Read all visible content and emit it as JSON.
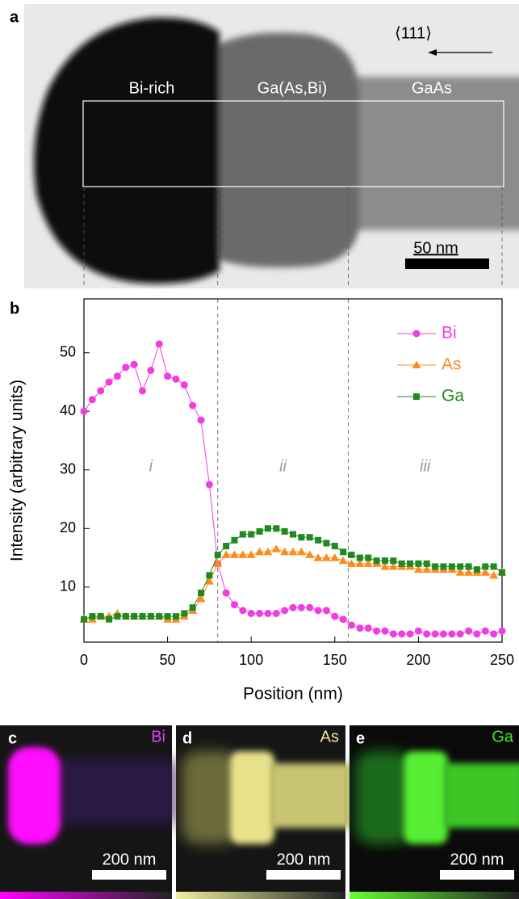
{
  "panels": {
    "a": {
      "letter": "a",
      "regions": [
        "Bi-rich",
        "Ga(As,Bi)",
        "GaAs"
      ],
      "direction": "⟨111⟩",
      "scale_bar": "50 nm"
    },
    "c": {
      "letter": "c",
      "element": "Bi",
      "scale_bar": "200 nm"
    },
    "d": {
      "letter": "d",
      "element": "As",
      "scale_bar": "200 nm"
    },
    "e": {
      "letter": "e",
      "element": "Ga",
      "scale_bar": "200 nm"
    }
  },
  "chart_data": {
    "type": "line",
    "letter": "b",
    "x_label": "Position (nm)",
    "y_label": "Intensity (arbitrary units)",
    "x": [
      0,
      5,
      10,
      15,
      20,
      25,
      30,
      35,
      40,
      45,
      50,
      55,
      60,
      65,
      70,
      75,
      80,
      85,
      90,
      95,
      100,
      105,
      110,
      115,
      120,
      125,
      130,
      135,
      140,
      145,
      150,
      155,
      160,
      165,
      170,
      175,
      180,
      185,
      190,
      195,
      200,
      205,
      210,
      215,
      220,
      225,
      230,
      235,
      240,
      245,
      250
    ],
    "series": [
      {
        "name": "Bi",
        "color": "#f23ce0",
        "marker": "circle",
        "values": [
          40,
          42,
          43.5,
          45,
          46,
          47.5,
          48,
          43.5,
          47,
          51.5,
          46,
          45.5,
          44.5,
          41,
          38.5,
          27.5,
          14,
          9,
          7,
          6,
          5.5,
          5.5,
          5.5,
          5.5,
          6,
          6.5,
          6.5,
          6.5,
          6,
          6,
          5,
          4.5,
          3.5,
          3,
          3,
          2.5,
          2.5,
          2,
          2,
          2,
          2.5,
          2,
          2,
          2,
          2,
          2,
          2.5,
          2,
          2.5,
          2,
          2.5
        ]
      },
      {
        "name": "As",
        "color": "#ff8c1a",
        "marker": "triangle",
        "values": [
          4.5,
          4.5,
          5,
          5,
          5.5,
          5,
          5,
          5,
          5,
          5,
          4.5,
          4.5,
          5,
          6,
          8,
          11,
          14,
          15.5,
          15.5,
          15.5,
          15.5,
          16,
          16,
          16.5,
          16,
          16,
          16,
          15.5,
          15,
          15,
          15,
          14.5,
          14,
          14,
          14,
          14,
          13.5,
          13.5,
          13.5,
          13.5,
          13,
          13,
          13,
          13,
          13,
          12.5,
          12.5,
          12.5,
          12.5,
          12,
          12.5
        ]
      },
      {
        "name": "Ga",
        "color": "#1f8a1f",
        "marker": "square",
        "values": [
          4.5,
          5,
          5,
          4.5,
          5,
          5,
          5,
          5,
          5,
          5,
          5,
          5,
          5.5,
          6.5,
          9,
          12,
          15.5,
          17,
          18,
          19,
          19,
          19.5,
          20,
          20,
          19.5,
          19,
          18.5,
          18.5,
          18,
          17.5,
          17,
          16,
          15.5,
          15,
          15,
          14.5,
          14.5,
          14.5,
          14,
          14,
          14,
          14,
          13.5,
          13.5,
          13.5,
          13.5,
          13.5,
          13,
          13.5,
          13.5,
          12.5
        ]
      }
    ],
    "xlim": [
      0,
      250
    ],
    "xticks": [
      0,
      50,
      100,
      150,
      200,
      250
    ],
    "ylim": [
      0.6,
      59.2
    ],
    "yticks": [
      10,
      20,
      30,
      40,
      50
    ],
    "region_boundaries": [
      80,
      158
    ],
    "region_labels": [
      "i",
      "ii",
      "iii"
    ],
    "legend": "upper right"
  }
}
